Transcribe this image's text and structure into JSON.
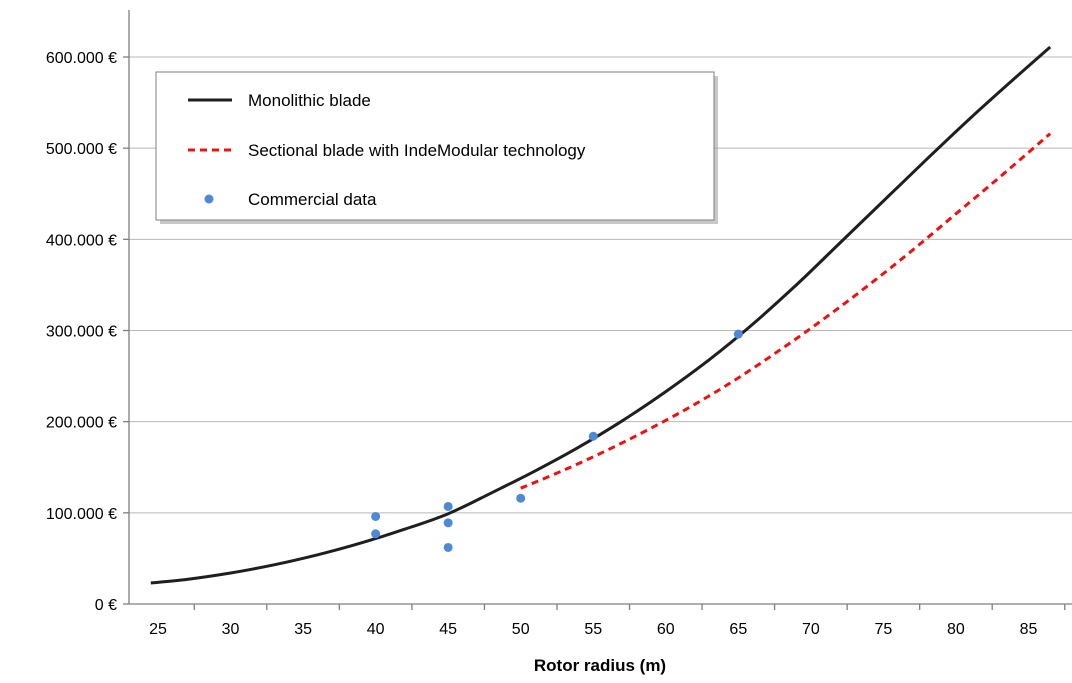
{
  "chart_data": {
    "type": "line",
    "title": "",
    "xlabel": "Rotor radius (m)",
    "ylabel": "",
    "xlim": [
      23,
      88
    ],
    "ylim": [
      0,
      600000
    ],
    "x_ticks": [
      25,
      30,
      35,
      40,
      45,
      50,
      55,
      60,
      65,
      70,
      75,
      80,
      85
    ],
    "x_tick_labels": [
      "25",
      "30",
      "35",
      "40",
      "45",
      "50",
      "55",
      "60",
      "65",
      "70",
      "75",
      "80",
      "85"
    ],
    "y_ticks": [
      0,
      100000,
      200000,
      300000,
      400000,
      500000,
      600000
    ],
    "y_tick_labels": [
      "0 €",
      "100.000 €",
      "200.000 €",
      "300.000 €",
      "400.000 €",
      "500.000 €",
      "600.000 €"
    ],
    "grid": "horizontal",
    "legend_position": "top-left",
    "series": [
      {
        "name": "Monolithic blade",
        "kind": "line",
        "color": "#1f1f1f",
        "dash": "solid",
        "x": [
          24.5,
          27,
          30,
          33,
          36,
          39,
          42,
          45,
          48,
          51,
          54,
          57,
          60,
          63,
          66,
          69,
          72,
          75,
          78,
          81,
          84,
          86.5
        ],
        "y": [
          23000,
          27000,
          34000,
          43000,
          54000,
          67000,
          82000,
          99000,
          122000,
          146000,
          172000,
          201000,
          233000,
          268000,
          307000,
          350000,
          396000,
          442000,
          488000,
          533000,
          576000,
          611000
        ]
      },
      {
        "name": "Sectional blade with IndeModular technology",
        "kind": "line",
        "color": "#ee1111",
        "dash": "dashed",
        "x": [
          50,
          53,
          56,
          59,
          62,
          65,
          68,
          71,
          74,
          77,
          80,
          83,
          86.5
        ],
        "y": [
          127000,
          147000,
          169000,
          193000,
          219000,
          248000,
          280000,
          314000,
          350000,
          388000,
          428000,
          468000,
          516000
        ]
      },
      {
        "name": "Commercial data",
        "kind": "scatter",
        "color": "#4e89d6",
        "x": [
          40,
          40,
          45,
          45,
          45,
          50,
          55,
          65
        ],
        "y": [
          96000,
          77000,
          107000,
          89000,
          62000,
          116000,
          184000,
          296000
        ]
      }
    ]
  }
}
